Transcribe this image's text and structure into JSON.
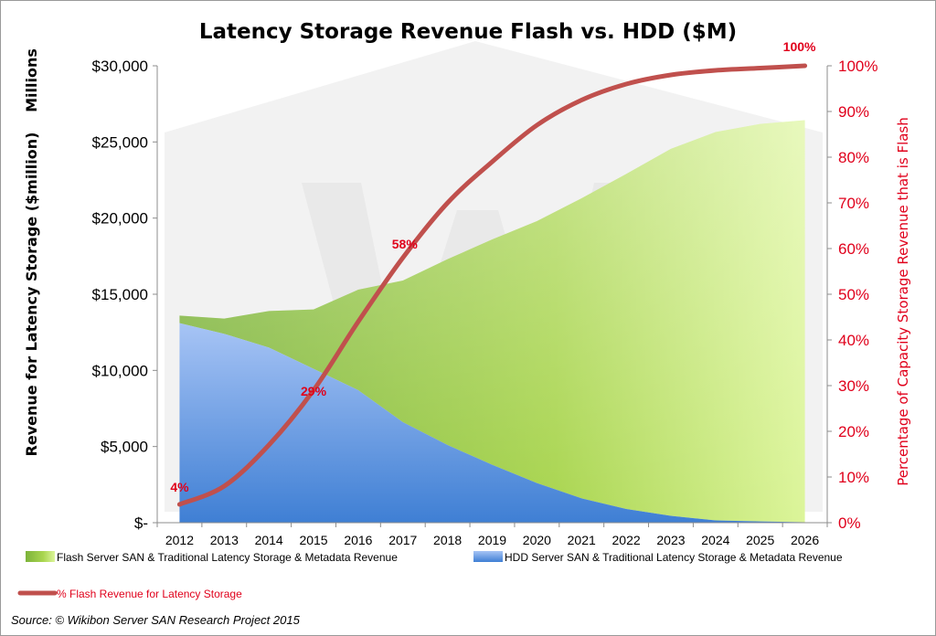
{
  "chart_data": {
    "type": "area",
    "title": "Latency Storage Revenue Flash vs. HDD ($M)",
    "unit_label": "Millions",
    "ylabel": "Revenue for Latency Storage ($million)",
    "y2label": "Percentage of Capacity Storage Revenue that is Flash",
    "ylim": [
      0,
      30000
    ],
    "y2lim": [
      0,
      1
    ],
    "yticks": [
      "$-",
      "$5,000",
      "$10,000",
      "$15,000",
      "$20,000",
      "$25,000",
      "$30,000"
    ],
    "y2ticks": [
      "0%",
      "10%",
      "20%",
      "30%",
      "40%",
      "50%",
      "60%",
      "70%",
      "80%",
      "90%",
      "100%"
    ],
    "categories": [
      "2012",
      "2013",
      "2014",
      "2015",
      "2016",
      "2017",
      "2018",
      "2019",
      "2020",
      "2021",
      "2022",
      "2023",
      "2024",
      "2025",
      "2026"
    ],
    "series": [
      {
        "name": "Flash Server SAN & Traditional Latency Storage & Metadata Revenue",
        "kind": "stacked-area",
        "color": "#a8d84a",
        "values": [
          500,
          1000,
          2400,
          3900,
          6600,
          9300,
          12200,
          14800,
          17200,
          19700,
          22000,
          24100,
          25500,
          26100,
          26400
        ]
      },
      {
        "name": "HDD Server SAN & Traditional Latency Storage & Metadata Revenue",
        "kind": "stacked-area",
        "color": "#5b8fd9",
        "values": [
          13100,
          12400,
          11500,
          10100,
          8700,
          6600,
          5100,
          3800,
          2600,
          1600,
          900,
          450,
          150,
          80,
          30
        ]
      },
      {
        "name": "% Flash Revenue for Latency Storage",
        "kind": "line",
        "axis": "secondary",
        "color": "#c0504d",
        "values": [
          0.04,
          0.08,
          0.17,
          0.29,
          0.44,
          0.58,
          0.7,
          0.79,
          0.87,
          0.925,
          0.96,
          0.98,
          0.99,
          0.995,
          1.0
        ]
      }
    ],
    "data_labels": [
      {
        "category": "2012",
        "text": "4%"
      },
      {
        "category": "2015",
        "text": "29%"
      },
      {
        "category": "2017",
        "text": "58%"
      },
      {
        "category": "2026",
        "text": "100%"
      }
    ],
    "legend": {
      "position": "bottom",
      "items": [
        "Flash Server SAN & Traditional Latency Storage & Metadata Revenue",
        "HDD Server SAN & Traditional Latency Storage & Metadata Revenue",
        "% Flash Revenue for Latency Storage"
      ]
    },
    "grid": false,
    "source": "Source: © Wikibon Server SAN Research Project 2015"
  }
}
